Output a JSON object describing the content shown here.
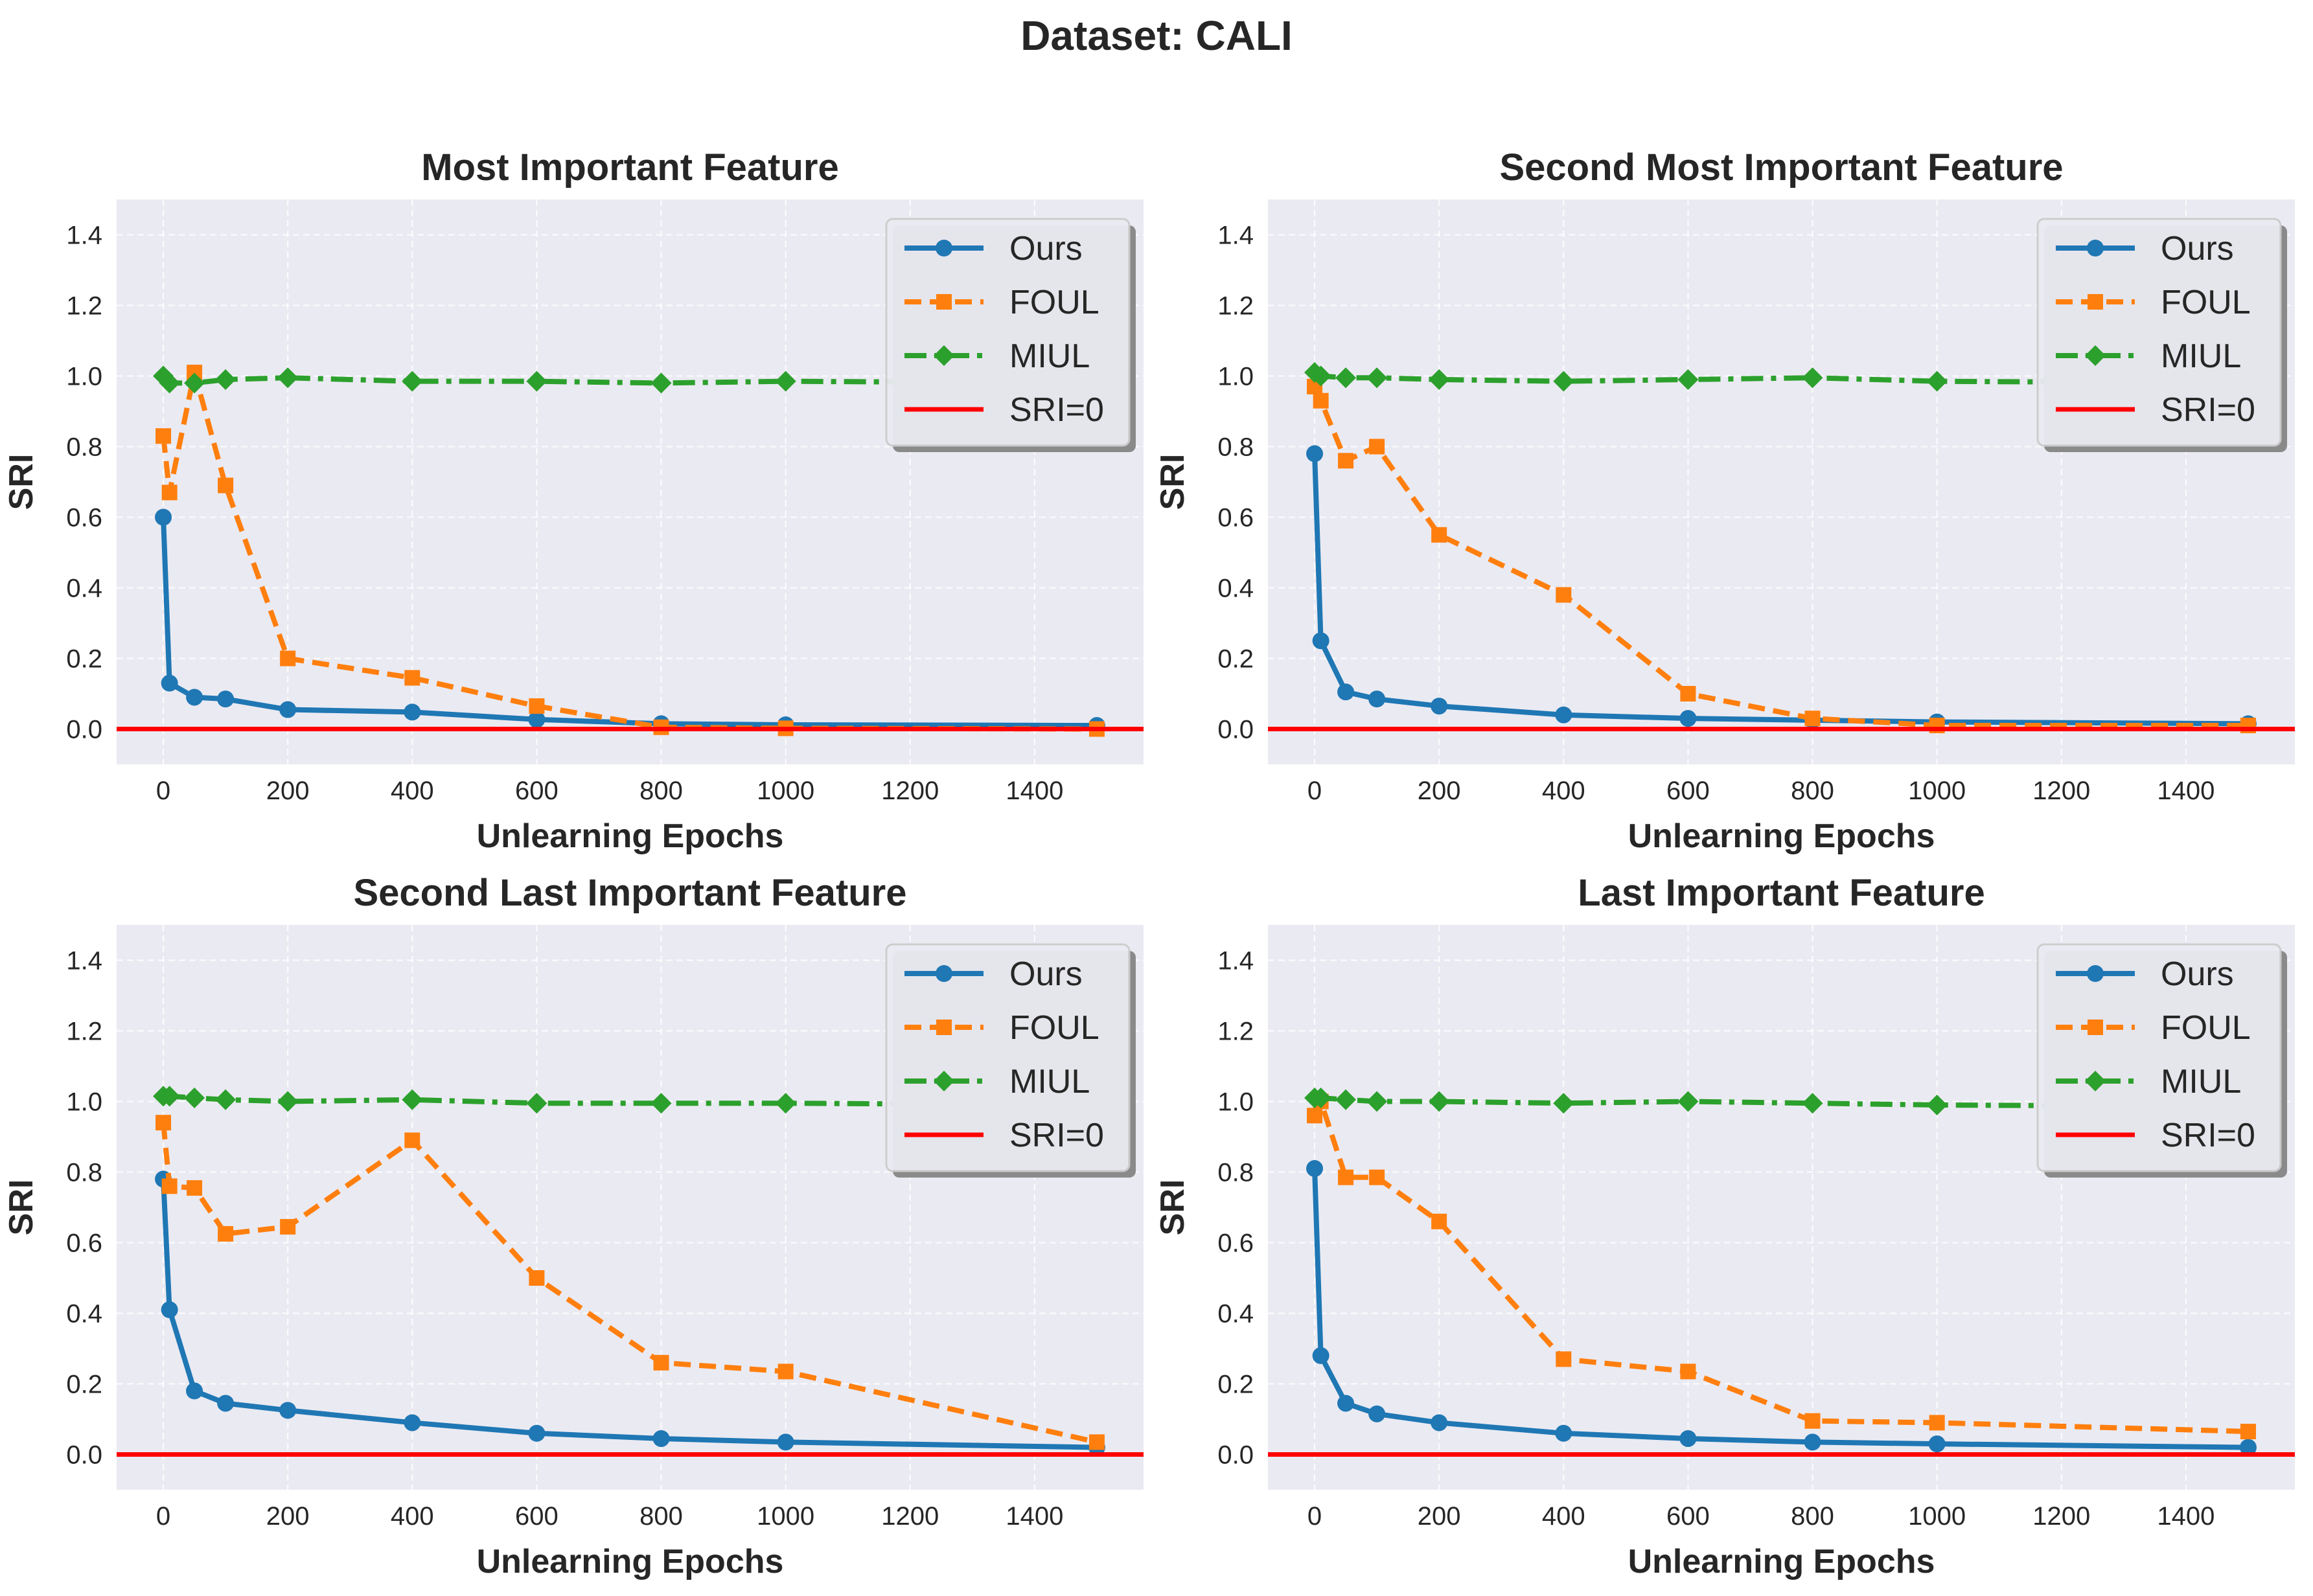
{
  "figure": {
    "title": "Dataset: CALI"
  },
  "colors": {
    "ours": "#1f77b4",
    "foul": "#ff7f0e",
    "miul": "#2ca02c",
    "sri_zero": "#ff0000",
    "axes_bg": "#eaeaf2",
    "grid": "#ffffff",
    "text": "#262626"
  },
  "chart_data": [
    {
      "type": "line",
      "title": "Most Important Feature",
      "xlabel": "Unlearning Epochs",
      "ylabel": "SRI",
      "xlim": [
        -75,
        1575
      ],
      "ylim": [
        -0.1,
        1.5
      ],
      "xticks": [
        0,
        200,
        400,
        600,
        800,
        1000,
        1200,
        1400
      ],
      "yticks": [
        0.0,
        0.2,
        0.4,
        0.6,
        0.8,
        1.0,
        1.2,
        1.4
      ],
      "grid": true,
      "legend": "top-right",
      "x": [
        0,
        10,
        50,
        100,
        200,
        400,
        600,
        800,
        1000,
        1500
      ],
      "series": [
        {
          "name": "Ours",
          "values": [
            0.6,
            0.13,
            0.09,
            0.085,
            0.055,
            0.048,
            0.027,
            0.015,
            0.012,
            0.01
          ]
        },
        {
          "name": "FOUL",
          "values": [
            0.83,
            0.67,
            1.01,
            0.69,
            0.2,
            0.145,
            0.065,
            0.005,
            0.002,
            0.0
          ]
        },
        {
          "name": "MIUL",
          "values": [
            1.0,
            0.98,
            0.98,
            0.99,
            0.995,
            0.985,
            0.985,
            0.98,
            0.985,
            0.98
          ]
        }
      ],
      "hline": {
        "name": "SRI=0",
        "y": 0.0
      }
    },
    {
      "type": "line",
      "title": "Second Most Important Feature",
      "xlabel": "Unlearning Epochs",
      "ylabel": "SRI",
      "xlim": [
        -75,
        1575
      ],
      "ylim": [
        -0.1,
        1.5
      ],
      "xticks": [
        0,
        200,
        400,
        600,
        800,
        1000,
        1200,
        1400
      ],
      "yticks": [
        0.0,
        0.2,
        0.4,
        0.6,
        0.8,
        1.0,
        1.2,
        1.4
      ],
      "grid": true,
      "legend": "top-right",
      "x": [
        0,
        10,
        50,
        100,
        200,
        400,
        600,
        800,
        1000,
        1500
      ],
      "series": [
        {
          "name": "Ours",
          "values": [
            0.78,
            0.25,
            0.105,
            0.085,
            0.065,
            0.04,
            0.03,
            0.025,
            0.02,
            0.015
          ]
        },
        {
          "name": "FOUL",
          "values": [
            0.97,
            0.93,
            0.76,
            0.8,
            0.55,
            0.38,
            0.1,
            0.03,
            0.01,
            0.01
          ]
        },
        {
          "name": "MIUL",
          "values": [
            1.01,
            1.0,
            0.995,
            0.995,
            0.99,
            0.985,
            0.99,
            0.995,
            0.985,
            0.98
          ]
        }
      ],
      "hline": {
        "name": "SRI=0",
        "y": 0.0
      }
    },
    {
      "type": "line",
      "title": "Second Last Important Feature",
      "xlabel": "Unlearning Epochs",
      "ylabel": "SRI",
      "xlim": [
        -75,
        1575
      ],
      "ylim": [
        -0.1,
        1.5
      ],
      "xticks": [
        0,
        200,
        400,
        600,
        800,
        1000,
        1200,
        1400
      ],
      "yticks": [
        0.0,
        0.2,
        0.4,
        0.6,
        0.8,
        1.0,
        1.2,
        1.4
      ],
      "grid": true,
      "legend": "top-right",
      "x": [
        0,
        10,
        50,
        100,
        200,
        400,
        600,
        800,
        1000,
        1500
      ],
      "series": [
        {
          "name": "Ours",
          "values": [
            0.78,
            0.41,
            0.18,
            0.145,
            0.125,
            0.09,
            0.06,
            0.045,
            0.035,
            0.02
          ]
        },
        {
          "name": "FOUL",
          "values": [
            0.94,
            0.76,
            0.755,
            0.625,
            0.645,
            0.89,
            0.5,
            0.26,
            0.235,
            0.035
          ]
        },
        {
          "name": "MIUL",
          "values": [
            1.015,
            1.015,
            1.01,
            1.005,
            1.0,
            1.005,
            0.995,
            0.995,
            0.995,
            0.99
          ]
        }
      ],
      "hline": {
        "name": "SRI=0",
        "y": 0.0
      }
    },
    {
      "type": "line",
      "title": "Last Important Feature",
      "xlabel": "Unlearning Epochs",
      "ylabel": "SRI",
      "xlim": [
        -75,
        1575
      ],
      "ylim": [
        -0.1,
        1.5
      ],
      "xticks": [
        0,
        200,
        400,
        600,
        800,
        1000,
        1200,
        1400
      ],
      "yticks": [
        0.0,
        0.2,
        0.4,
        0.6,
        0.8,
        1.0,
        1.2,
        1.4
      ],
      "grid": true,
      "legend": "top-right",
      "x": [
        0,
        10,
        50,
        100,
        200,
        400,
        600,
        800,
        1000,
        1500
      ],
      "series": [
        {
          "name": "Ours",
          "values": [
            0.81,
            0.28,
            0.145,
            0.115,
            0.09,
            0.06,
            0.045,
            0.035,
            0.03,
            0.02
          ]
        },
        {
          "name": "FOUL",
          "values": [
            0.96,
            1.0,
            0.785,
            0.785,
            0.66,
            0.27,
            0.235,
            0.095,
            0.09,
            0.065
          ]
        },
        {
          "name": "MIUL",
          "values": [
            1.01,
            1.01,
            1.005,
            1.0,
            1.0,
            0.995,
            1.0,
            0.995,
            0.99,
            0.985
          ]
        }
      ],
      "hline": {
        "name": "SRI=0",
        "y": 0.0
      }
    }
  ]
}
